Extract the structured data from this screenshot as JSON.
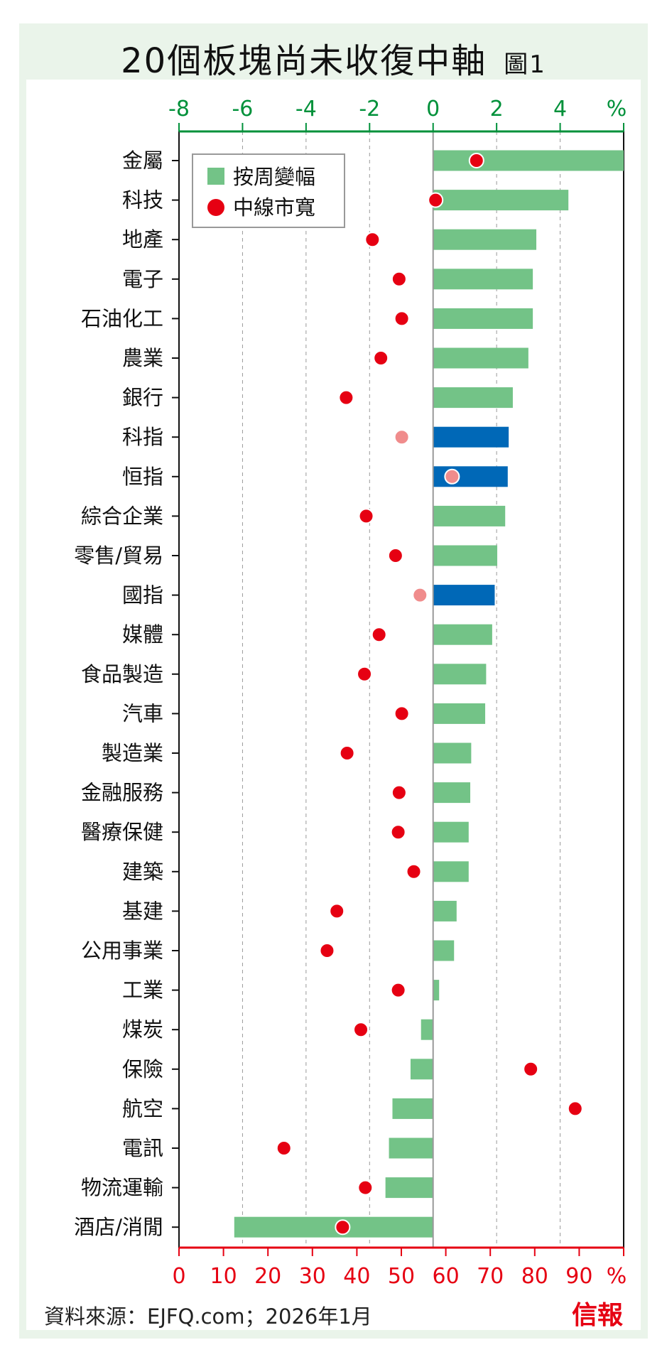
{
  "title": "20個板塊尚未收復中軸",
  "figure_label": "圖1",
  "source": "資料來源：EJFQ.com；2026年1月",
  "logo_text": "信報",
  "colors": {
    "bar": "#73c387",
    "bar_index": "#0068b7",
    "dot": "#e60012",
    "dot_index": "#f08c8c",
    "top_axis": "#00913a",
    "bottom_axis": "#e60012",
    "bg": "#eaf4ea"
  },
  "chart_data": {
    "type": "bar",
    "orientation": "horizontal",
    "title": "20個板塊尚未收復中軸",
    "legend": [
      "按周變幅",
      "中線市寬"
    ],
    "legend_position": "top-left",
    "top_axis": {
      "label": "%",
      "range": [
        -8,
        6
      ],
      "ticks": [
        -8,
        -6,
        -4,
        -2,
        0,
        2,
        4
      ],
      "tick_labels": [
        "-8",
        "-6",
        "-4",
        "-2",
        "0",
        "2",
        "4"
      ],
      "unit_label": "%"
    },
    "bottom_axis": {
      "label": "%",
      "range": [
        0,
        100
      ],
      "ticks": [
        0,
        10,
        20,
        30,
        40,
        50,
        60,
        70,
        80,
        90
      ],
      "tick_labels": [
        "0",
        "10",
        "20",
        "30",
        "40",
        "50",
        "60",
        "70",
        "80",
        "90"
      ],
      "unit_label": "%"
    },
    "categories": [
      "金屬",
      "科技",
      "地產",
      "電子",
      "石油化工",
      "農業",
      "銀行",
      "科指",
      "恒指",
      "綜合企業",
      "零售/貿易",
      "國指",
      "媒體",
      "食品製造",
      "汽車",
      "製造業",
      "金融服務",
      "醫療保健",
      "建築",
      "基建",
      "公用事業",
      "工業",
      "煤炭",
      "保險",
      "航空",
      "電訊",
      "物流運輸",
      "酒店/消閒"
    ],
    "is_index": [
      false,
      false,
      false,
      false,
      false,
      false,
      false,
      true,
      true,
      false,
      false,
      true,
      false,
      false,
      false,
      false,
      false,
      false,
      false,
      false,
      false,
      false,
      false,
      false,
      false,
      false,
      false,
      false
    ],
    "series": [
      {
        "name": "按周變幅",
        "axis": "top",
        "values": [
          6.0,
          4.26,
          3.25,
          3.14,
          3.14,
          3.0,
          2.51,
          2.38,
          2.35,
          2.27,
          2.02,
          1.94,
          1.86,
          1.67,
          1.64,
          1.2,
          1.17,
          1.12,
          1.12,
          0.74,
          0.66,
          0.19,
          -0.38,
          -0.71,
          -1.28,
          -1.39,
          -1.5,
          -6.26
        ]
      },
      {
        "name": "中線市寬",
        "axis": "bottom",
        "values": [
          66.9,
          57.7,
          43.5,
          49.5,
          50.1,
          45.4,
          37.6,
          50.1,
          61.4,
          42.1,
          48.7,
          54.2,
          45.0,
          41.7,
          50.1,
          37.8,
          49.5,
          49.3,
          52.8,
          35.5,
          33.3,
          49.3,
          40.9,
          79.1,
          89.1,
          23.6,
          41.9,
          36.8
        ]
      }
    ]
  }
}
